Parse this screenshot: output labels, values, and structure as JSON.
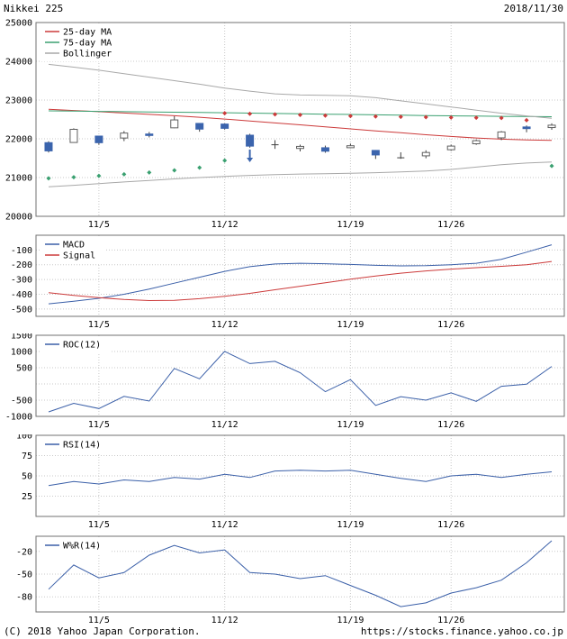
{
  "header": {
    "title": "Nikkei 225",
    "date": "2018/11/30"
  },
  "footer": {
    "copyright": "(C) 2018 Yahoo Japan Corporation.",
    "url": "https://stocks.finance.yahoo.co.jp"
  },
  "colors": {
    "grid": "#c8c8c8",
    "border": "#707070",
    "up_candle_fill": "#ffffff",
    "up_candle_stroke": "#606060",
    "down_candle": "#3b64ad",
    "wick": "#404040",
    "red": "#cc3a3a",
    "green": "#3aa070",
    "gray": "#a8a8a8",
    "blue": "#3a5fa8"
  },
  "dates": [
    "11/1",
    "11/2",
    "11/5",
    "11/6",
    "11/7",
    "11/8",
    "11/9",
    "11/12",
    "11/13",
    "11/14",
    "11/15",
    "11/16",
    "11/19",
    "11/20",
    "11/21",
    "11/22",
    "11/26",
    "11/27",
    "11/28",
    "11/29",
    "11/30"
  ],
  "xticks": [
    "11/5",
    "11/12",
    "11/19",
    "11/26"
  ],
  "chart_data": [
    {
      "type": "candlestick",
      "panel": "price",
      "title": "Nikkei 225",
      "ylim": [
        20000,
        25000
      ],
      "yticks": [
        25000,
        24000,
        23000,
        22000,
        21000,
        20000
      ],
      "legend": [
        {
          "label": "25-day MA",
          "color": "#cc3a3a"
        },
        {
          "label": "75-day MA",
          "color": "#3aa070"
        },
        {
          "label": "Bollinger",
          "color": "#a8a8a8"
        }
      ],
      "candles": {
        "open": [
          21900,
          21905,
          22070,
          22020,
          22123,
          22283,
          22397,
          22380,
          22093,
          21845,
          21751,
          21769,
          21770,
          21700,
          21510,
          21560,
          21718,
          21872,
          22024,
          22305,
          22290
        ],
        "high": [
          21937,
          22270,
          22081,
          22200,
          22176,
          22583,
          22399,
          22397,
          22129,
          21965,
          21849,
          21824,
          21876,
          21710,
          21652,
          21703,
          21847,
          21981,
          22200,
          22344,
          22399
        ],
        "low": [
          21646,
          21902,
          21847,
          21940,
          22036,
          22274,
          22183,
          22236,
          21772,
          21740,
          21675,
          21640,
          21755,
          21480,
          21484,
          21497,
          21689,
          21844,
          21966,
          22168,
          22232
        ],
        "close": [
          21688,
          22244,
          21899,
          22148,
          22086,
          22487,
          22250,
          22270,
          21811,
          21846,
          21804,
          21680,
          21821,
          21583,
          21508,
          21647,
          21812,
          21952,
          22177,
          22263,
          22351
        ]
      },
      "series": [
        {
          "name": "25-day MA",
          "color": "#cc3a3a",
          "values": [
            22760,
            22730,
            22700,
            22665,
            22630,
            22595,
            22555,
            22510,
            22460,
            22410,
            22360,
            22310,
            22255,
            22205,
            22155,
            22105,
            22060,
            22020,
            21990,
            21970,
            21960
          ]
        },
        {
          "name": "75-day MA",
          "color": "#3aa070",
          "values": [
            22720,
            22714,
            22708,
            22701,
            22694,
            22687,
            22680,
            22672,
            22663,
            22654,
            22645,
            22636,
            22627,
            22618,
            22609,
            22600,
            22592,
            22585,
            22579,
            22574,
            22570
          ]
        },
        {
          "name": "Bollinger upper",
          "color": "#a8a8a8",
          "values": [
            23920,
            23850,
            23770,
            23680,
            23590,
            23500,
            23410,
            23310,
            23230,
            23160,
            23130,
            23120,
            23110,
            23060,
            22980,
            22900,
            22820,
            22740,
            22660,
            22590,
            22530
          ]
        },
        {
          "name": "Bollinger lower",
          "color": "#a8a8a8",
          "values": [
            20760,
            20800,
            20845,
            20885,
            20925,
            20965,
            21000,
            21030,
            21055,
            21075,
            21090,
            21100,
            21110,
            21125,
            21145,
            21170,
            21210,
            21270,
            21330,
            21375,
            21400
          ]
        }
      ],
      "markers": [
        {
          "name": "parabolic-upper",
          "color": "#cc3a3a",
          "values": [
            null,
            null,
            null,
            null,
            null,
            null,
            null,
            22660,
            22645,
            22630,
            22615,
            22600,
            22588,
            22576,
            22566,
            22558,
            22550,
            22544,
            22538,
            22480,
            null
          ]
        },
        {
          "name": "parabolic-lower",
          "color": "#3aa070",
          "values": [
            20980,
            21010,
            21045,
            21085,
            21130,
            21185,
            21255,
            21440,
            null,
            null,
            null,
            null,
            null,
            null,
            null,
            null,
            null,
            null,
            null,
            null,
            21300
          ]
        }
      ],
      "annotations": [
        {
          "type": "down-arrow",
          "date": "11/13",
          "value": 21420,
          "color": "#3b64ad"
        }
      ]
    },
    {
      "type": "line",
      "panel": "macd",
      "ylim": [
        -550,
        0
      ],
      "yticks": [
        -100,
        -200,
        -300,
        -400,
        -500
      ],
      "legend": [
        {
          "label": "MACD",
          "color": "#3a5fa8"
        },
        {
          "label": "Signal",
          "color": "#cc3a3a"
        }
      ],
      "series": [
        {
          "name": "MACD",
          "color": "#3a5fa8",
          "values": [
            -465,
            -448,
            -428,
            -400,
            -365,
            -325,
            -285,
            -245,
            -213,
            -195,
            -190,
            -193,
            -198,
            -204,
            -208,
            -206,
            -200,
            -190,
            -163,
            -115,
            -65
          ]
        },
        {
          "name": "Signal",
          "color": "#cc3a3a",
          "values": [
            -390,
            -408,
            -423,
            -436,
            -443,
            -441,
            -430,
            -414,
            -394,
            -370,
            -346,
            -322,
            -298,
            -276,
            -257,
            -242,
            -230,
            -220,
            -211,
            -200,
            -178
          ]
        }
      ]
    },
    {
      "type": "line",
      "panel": "roc",
      "ylim": [
        -1000,
        1500
      ],
      "yticks": [
        1500,
        1000,
        500,
        0,
        -500,
        -1000
      ],
      "ytick_labels": [
        "1500",
        "1000",
        "500",
        "",
        "-500",
        "-1000"
      ],
      "legend": [
        {
          "label": "ROC(12)",
          "color": "#3a5fa8"
        }
      ],
      "series": [
        {
          "name": "ROC(12)",
          "color": "#3a5fa8",
          "values": [
            -861,
            -597,
            -759,
            -384,
            -528,
            477,
            159,
            1002,
            627,
            697,
            347,
            -240,
            133,
            -661,
            -391,
            -501,
            -274,
            -535,
            -73,
            -7,
            540
          ]
        }
      ]
    },
    {
      "type": "line",
      "panel": "rsi",
      "ylim": [
        0,
        100
      ],
      "yticks": [
        100,
        75,
        50,
        25
      ],
      "legend": [
        {
          "label": "RSI(14)",
          "color": "#3a5fa8"
        }
      ],
      "series": [
        {
          "name": "RSI(14)",
          "color": "#3a5fa8",
          "values": [
            38,
            43,
            40,
            45,
            43,
            48,
            46,
            52,
            48,
            56,
            57,
            56,
            57,
            52,
            47,
            43,
            50,
            52,
            48,
            52,
            55
          ]
        }
      ]
    },
    {
      "type": "line",
      "panel": "wpr",
      "ylim": [
        -100,
        0
      ],
      "yticks": [
        -20,
        -50,
        -80
      ],
      "legend": [
        {
          "label": "W%R(14)",
          "color": "#3a5fa8"
        }
      ],
      "series": [
        {
          "name": "W%R(14)",
          "color": "#3a5fa8",
          "values": [
            -70,
            -38,
            -55,
            -48,
            -25,
            -12,
            -22,
            -18,
            -48,
            -50,
            -56,
            -52,
            -65,
            -78,
            -93,
            -88,
            -75,
            -68,
            -58,
            -35,
            -6
          ]
        }
      ]
    }
  ]
}
